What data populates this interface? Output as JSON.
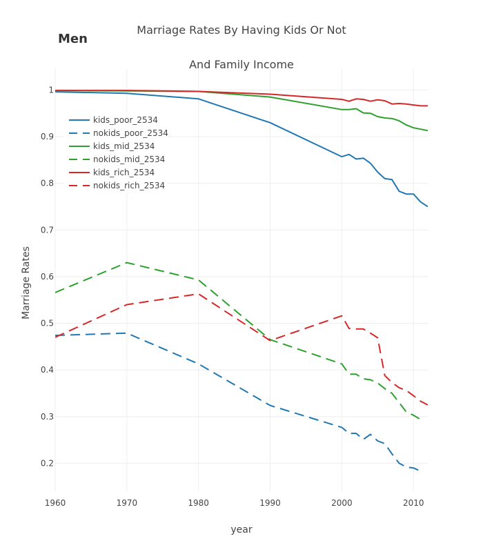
{
  "panel_label": "Men",
  "chart_data": {
    "type": "line",
    "title": "Marriage Rates By Having Kids Or Not",
    "subtitle": "And Family Income",
    "xlabel": "year",
    "ylabel": "Marriage Rates",
    "xlim": [
      1960,
      2012
    ],
    "ylim": [
      0.14,
      1.045
    ],
    "x_ticks": [
      1960,
      1970,
      1980,
      1990,
      2000,
      2010
    ],
    "y_ticks": [
      0.2,
      0.3,
      0.4,
      0.5,
      0.6,
      0.7,
      0.8,
      0.9,
      1
    ],
    "y_tick_labels": [
      "0.2",
      "0.3",
      "0.4",
      "0.5",
      "0.6",
      "0.7",
      "0.8",
      "0.9",
      "1"
    ],
    "grid": true,
    "legend_position": "top-left",
    "series": [
      {
        "name": "kids_poor_2534",
        "color": "#1f77b4",
        "dash": "solid",
        "x": [
          1960,
          1970,
          1980,
          1990,
          2000,
          2001,
          2002,
          2003,
          2004,
          2005,
          2006,
          2007,
          2008,
          2009,
          2010,
          2011,
          2012
        ],
        "y": [
          0.996,
          0.993,
          0.981,
          0.93,
          0.857,
          0.862,
          0.852,
          0.854,
          0.843,
          0.824,
          0.81,
          0.808,
          0.783,
          0.777,
          0.777,
          0.76,
          0.75
        ]
      },
      {
        "name": "nokids_poor_2534",
        "color": "#1f77b4",
        "dash": "dashed",
        "x": [
          1960,
          1970,
          1980,
          1990,
          2000,
          2001,
          2002,
          2003,
          2004,
          2005,
          2006,
          2007,
          2008,
          2009,
          2010,
          2011
        ],
        "y": [
          0.474,
          0.479,
          0.413,
          0.324,
          0.277,
          0.264,
          0.264,
          0.251,
          0.262,
          0.248,
          0.242,
          0.22,
          0.2,
          0.192,
          0.19,
          0.183
        ]
      },
      {
        "name": "kids_mid_2534",
        "color": "#2ca02c",
        "dash": "solid",
        "x": [
          1960,
          1970,
          1980,
          1990,
          2000,
          2001,
          2002,
          2003,
          2004,
          2005,
          2006,
          2007,
          2008,
          2009,
          2010,
          2011,
          2012
        ],
        "y": [
          0.999,
          0.998,
          0.997,
          0.985,
          0.958,
          0.958,
          0.96,
          0.951,
          0.95,
          0.943,
          0.94,
          0.939,
          0.934,
          0.925,
          0.919,
          0.916,
          0.913
        ]
      },
      {
        "name": "nokids_mid_2534",
        "color": "#2ca02c",
        "dash": "dashed",
        "x": [
          1960,
          1970,
          1980,
          1990,
          2000,
          2001,
          2002,
          2003,
          2004,
          2005,
          2006,
          2007,
          2008,
          2009,
          2010,
          2011
        ],
        "y": [
          0.566,
          0.63,
          0.593,
          0.465,
          0.413,
          0.391,
          0.391,
          0.381,
          0.379,
          0.372,
          0.36,
          0.35,
          0.33,
          0.31,
          0.303,
          0.294
        ]
      },
      {
        "name": "kids_rich_2534",
        "color": "#d62728",
        "dash": "solid",
        "x": [
          1960,
          1970,
          1980,
          1990,
          2000,
          2001,
          2002,
          2003,
          2004,
          2005,
          2006,
          2007,
          2008,
          2009,
          2010,
          2011,
          2012
        ],
        "y": [
          0.999,
          0.999,
          0.997,
          0.991,
          0.98,
          0.976,
          0.981,
          0.98,
          0.976,
          0.979,
          0.977,
          0.97,
          0.971,
          0.97,
          0.968,
          0.966,
          0.966
        ]
      },
      {
        "name": "nokids_rich_2534",
        "color": "#d62728",
        "dash": "dashed",
        "x": [
          1960,
          1970,
          1980,
          1990,
          2000,
          2001,
          2002,
          2003,
          2004,
          2005,
          2006,
          2007,
          2008,
          2009,
          2010,
          2011,
          2012
        ],
        "y": [
          0.47,
          0.54,
          0.563,
          0.463,
          0.516,
          0.489,
          0.488,
          0.488,
          0.479,
          0.469,
          0.388,
          0.373,
          0.362,
          0.356,
          0.345,
          0.333,
          0.325
        ]
      }
    ]
  }
}
